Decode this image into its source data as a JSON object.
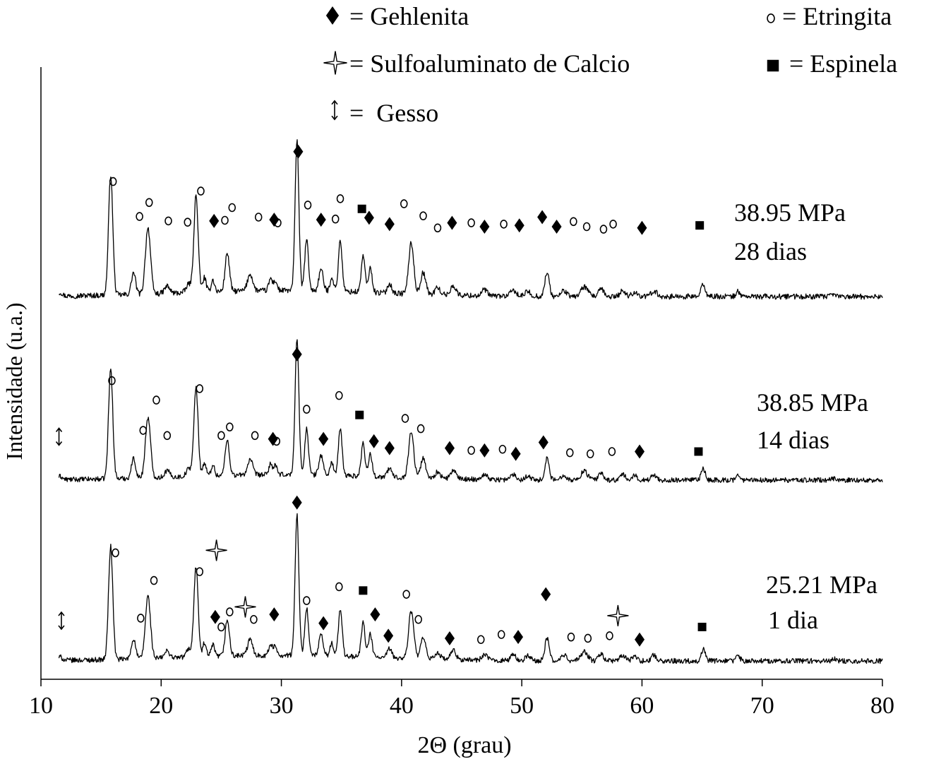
{
  "chart_data": {
    "type": "line",
    "title": "",
    "xlabel": "2Θ (grau)",
    "ylabel": "Intensidade (u.a.)",
    "xlim": [
      10,
      80
    ],
    "xticks": [
      10,
      20,
      30,
      40,
      50,
      60,
      70,
      80
    ],
    "legend": {
      "placement": "top",
      "entries": [
        {
          "symbol": "diamond",
          "label": "= Gehlenita"
        },
        {
          "symbol": "star",
          "label": "= Sulfoaluminato de Calcio"
        },
        {
          "symbol": "updown-arrow",
          "label": "=  Gesso"
        },
        {
          "symbol": "circle",
          "label": "= Etringita"
        },
        {
          "symbol": "square",
          "label": "= Espinela"
        }
      ]
    },
    "peaks": [
      {
        "pos": 11.6,
        "h": 0.03,
        "w": 0.25
      },
      {
        "pos": 15.8,
        "h": 1.0,
        "w": 0.25
      },
      {
        "pos": 17.7,
        "h": 0.18,
        "w": 0.25
      },
      {
        "pos": 18.9,
        "h": 0.55,
        "w": 0.3
      },
      {
        "pos": 20.5,
        "h": 0.06,
        "w": 0.3
      },
      {
        "pos": 22.3,
        "h": 0.07,
        "w": 0.3
      },
      {
        "pos": 22.9,
        "h": 0.8,
        "w": 0.25
      },
      {
        "pos": 23.6,
        "h": 0.12,
        "w": 0.2
      },
      {
        "pos": 24.3,
        "h": 0.1,
        "w": 0.2
      },
      {
        "pos": 25.5,
        "h": 0.32,
        "w": 0.25
      },
      {
        "pos": 27.4,
        "h": 0.14,
        "w": 0.3
      },
      {
        "pos": 29.1,
        "h": 0.1,
        "w": 0.2
      },
      {
        "pos": 29.5,
        "h": 0.08,
        "w": 0.2
      },
      {
        "pos": 31.3,
        "h": 1.25,
        "w": 0.22
      },
      {
        "pos": 32.1,
        "h": 0.42,
        "w": 0.22
      },
      {
        "pos": 33.3,
        "h": 0.18,
        "w": 0.25
      },
      {
        "pos": 34.2,
        "h": 0.12,
        "w": 0.2
      },
      {
        "pos": 34.9,
        "h": 0.42,
        "w": 0.22
      },
      {
        "pos": 36.8,
        "h": 0.3,
        "w": 0.22
      },
      {
        "pos": 37.4,
        "h": 0.2,
        "w": 0.22
      },
      {
        "pos": 39.0,
        "h": 0.08,
        "w": 0.25
      },
      {
        "pos": 40.8,
        "h": 0.42,
        "w": 0.3
      },
      {
        "pos": 41.8,
        "h": 0.18,
        "w": 0.3
      },
      {
        "pos": 43.0,
        "h": 0.06,
        "w": 0.3
      },
      {
        "pos": 44.3,
        "h": 0.08,
        "w": 0.3
      },
      {
        "pos": 46.9,
        "h": 0.05,
        "w": 0.3
      },
      {
        "pos": 49.3,
        "h": 0.05,
        "w": 0.3
      },
      {
        "pos": 50.5,
        "h": 0.04,
        "w": 0.3
      },
      {
        "pos": 52.1,
        "h": 0.2,
        "w": 0.25
      },
      {
        "pos": 53.5,
        "h": 0.05,
        "w": 0.3
      },
      {
        "pos": 55.2,
        "h": 0.08,
        "w": 0.4
      },
      {
        "pos": 56.6,
        "h": 0.06,
        "w": 0.3
      },
      {
        "pos": 58.4,
        "h": 0.05,
        "w": 0.3
      },
      {
        "pos": 59.4,
        "h": 0.04,
        "w": 0.3
      },
      {
        "pos": 61.0,
        "h": 0.05,
        "w": 0.3
      },
      {
        "pos": 65.1,
        "h": 0.1,
        "w": 0.25
      },
      {
        "pos": 68.0,
        "h": 0.04,
        "w": 0.25
      },
      {
        "pos": 76.0,
        "h": 0.015,
        "w": 0.3
      }
    ],
    "series": [
      {
        "name": "28 dias",
        "strength": "38.95 MPa",
        "age": "28 dias",
        "baseline_frac": 0.465,
        "markers": [
          {
            "x": 16.0,
            "y": 0.905,
            "s": "circle"
          },
          {
            "x": 19.0,
            "y": 0.74,
            "s": "circle"
          },
          {
            "x": 18.2,
            "y": 0.63,
            "s": "circle"
          },
          {
            "x": 20.6,
            "y": 0.595,
            "s": "circle"
          },
          {
            "x": 22.2,
            "y": 0.585,
            "s": "circle"
          },
          {
            "x": 23.3,
            "y": 0.83,
            "s": "circle"
          },
          {
            "x": 24.4,
            "y": 0.595,
            "s": "diamond"
          },
          {
            "x": 25.3,
            "y": 0.6,
            "s": "circle"
          },
          {
            "x": 25.9,
            "y": 0.7,
            "s": "circle"
          },
          {
            "x": 28.1,
            "y": 0.625,
            "s": "circle"
          },
          {
            "x": 29.4,
            "y": 0.605,
            "s": "diamond"
          },
          {
            "x": 29.7,
            "y": 0.58,
            "s": "circle"
          },
          {
            "x": 31.4,
            "y": 1.14,
            "s": "diamond"
          },
          {
            "x": 32.2,
            "y": 0.72,
            "s": "circle"
          },
          {
            "x": 33.3,
            "y": 0.605,
            "s": "diamond"
          },
          {
            "x": 34.5,
            "y": 0.61,
            "s": "circle"
          },
          {
            "x": 34.9,
            "y": 0.77,
            "s": "circle"
          },
          {
            "x": 36.7,
            "y": 0.69,
            "s": "square"
          },
          {
            "x": 37.3,
            "y": 0.62,
            "s": "diamond"
          },
          {
            "x": 39.0,
            "y": 0.57,
            "s": "diamond"
          },
          {
            "x": 40.2,
            "y": 0.73,
            "s": "circle"
          },
          {
            "x": 41.8,
            "y": 0.635,
            "s": "circle"
          },
          {
            "x": 43.0,
            "y": 0.54,
            "s": "circle"
          },
          {
            "x": 44.2,
            "y": 0.58,
            "s": "diamond"
          },
          {
            "x": 45.8,
            "y": 0.58,
            "s": "circle"
          },
          {
            "x": 46.9,
            "y": 0.55,
            "s": "diamond"
          },
          {
            "x": 48.5,
            "y": 0.57,
            "s": "circle"
          },
          {
            "x": 49.8,
            "y": 0.56,
            "s": "diamond"
          },
          {
            "x": 51.7,
            "y": 0.625,
            "s": "diamond"
          },
          {
            "x": 52.9,
            "y": 0.55,
            "s": "diamond"
          },
          {
            "x": 54.3,
            "y": 0.59,
            "s": "circle"
          },
          {
            "x": 55.4,
            "y": 0.55,
            "s": "circle"
          },
          {
            "x": 56.8,
            "y": 0.53,
            "s": "circle"
          },
          {
            "x": 57.6,
            "y": 0.57,
            "s": "circle"
          },
          {
            "x": 60.0,
            "y": 0.54,
            "s": "diamond"
          },
          {
            "x": 64.8,
            "y": 0.56,
            "s": "square"
          }
        ]
      },
      {
        "name": "14 dias",
        "strength": "38.85 MPa",
        "age": "14 dias",
        "baseline_frac": 0.47,
        "markers": [
          {
            "x": 11.5,
            "y": 0.38,
            "s": "arrow"
          },
          {
            "x": 15.9,
            "y": 0.87,
            "s": "circle"
          },
          {
            "x": 18.5,
            "y": 0.435,
            "s": "circle"
          },
          {
            "x": 19.6,
            "y": 0.7,
            "s": "circle"
          },
          {
            "x": 20.5,
            "y": 0.39,
            "s": "circle"
          },
          {
            "x": 23.2,
            "y": 0.8,
            "s": "circle"
          },
          {
            "x": 25.0,
            "y": 0.39,
            "s": "circle"
          },
          {
            "x": 25.7,
            "y": 0.465,
            "s": "circle"
          },
          {
            "x": 27.8,
            "y": 0.39,
            "s": "circle"
          },
          {
            "x": 29.3,
            "y": 0.36,
            "s": "diamond"
          },
          {
            "x": 29.6,
            "y": 0.34,
            "s": "circle"
          },
          {
            "x": 31.3,
            "y": 1.1,
            "s": "diamond"
          },
          {
            "x": 32.1,
            "y": 0.62,
            "s": "circle"
          },
          {
            "x": 33.5,
            "y": 0.36,
            "s": "diamond"
          },
          {
            "x": 34.8,
            "y": 0.74,
            "s": "circle"
          },
          {
            "x": 36.5,
            "y": 0.57,
            "s": "square"
          },
          {
            "x": 37.7,
            "y": 0.34,
            "s": "diamond"
          },
          {
            "x": 39.0,
            "y": 0.28,
            "s": "diamond"
          },
          {
            "x": 40.3,
            "y": 0.54,
            "s": "circle"
          },
          {
            "x": 41.6,
            "y": 0.45,
            "s": "circle"
          },
          {
            "x": 44.0,
            "y": 0.28,
            "s": "diamond"
          },
          {
            "x": 45.8,
            "y": 0.26,
            "s": "circle"
          },
          {
            "x": 46.9,
            "y": 0.26,
            "s": "diamond"
          },
          {
            "x": 48.4,
            "y": 0.27,
            "s": "circle"
          },
          {
            "x": 49.5,
            "y": 0.23,
            "s": "diamond"
          },
          {
            "x": 51.8,
            "y": 0.33,
            "s": "diamond"
          },
          {
            "x": 54.0,
            "y": 0.24,
            "s": "circle"
          },
          {
            "x": 55.7,
            "y": 0.23,
            "s": "circle"
          },
          {
            "x": 57.5,
            "y": 0.25,
            "s": "circle"
          },
          {
            "x": 59.8,
            "y": 0.25,
            "s": "diamond"
          },
          {
            "x": 64.7,
            "y": 0.25,
            "s": "square"
          }
        ]
      },
      {
        "name": "1 dia",
        "strength": "25.21 MPa",
        "age": "1 dia",
        "baseline_frac": 0.44,
        "markers": [
          {
            "x": 11.7,
            "y": 0.32,
            "s": "arrow"
          },
          {
            "x": 16.2,
            "y": 0.86,
            "s": "circle"
          },
          {
            "x": 18.3,
            "y": 0.34,
            "s": "circle"
          },
          {
            "x": 19.4,
            "y": 0.64,
            "s": "circle"
          },
          {
            "x": 23.2,
            "y": 0.71,
            "s": "circle"
          },
          {
            "x": 24.6,
            "y": 0.88,
            "s": "star"
          },
          {
            "x": 24.5,
            "y": 0.35,
            "s": "diamond"
          },
          {
            "x": 25.0,
            "y": 0.27,
            "s": "circle"
          },
          {
            "x": 25.7,
            "y": 0.39,
            "s": "circle"
          },
          {
            "x": 27.0,
            "y": 0.43,
            "s": "star"
          },
          {
            "x": 27.7,
            "y": 0.33,
            "s": "circle"
          },
          {
            "x": 29.4,
            "y": 0.37,
            "s": "diamond"
          },
          {
            "x": 31.3,
            "y": 1.26,
            "s": "diamond"
          },
          {
            "x": 32.1,
            "y": 0.48,
            "s": "circle"
          },
          {
            "x": 33.5,
            "y": 0.3,
            "s": "diamond"
          },
          {
            "x": 34.8,
            "y": 0.59,
            "s": "circle"
          },
          {
            "x": 36.8,
            "y": 0.56,
            "s": "square"
          },
          {
            "x": 37.8,
            "y": 0.37,
            "s": "diamond"
          },
          {
            "x": 38.9,
            "y": 0.2,
            "s": "diamond"
          },
          {
            "x": 40.4,
            "y": 0.53,
            "s": "circle"
          },
          {
            "x": 41.4,
            "y": 0.33,
            "s": "circle"
          },
          {
            "x": 44.0,
            "y": 0.18,
            "s": "diamond"
          },
          {
            "x": 46.6,
            "y": 0.17,
            "s": "circle"
          },
          {
            "x": 48.3,
            "y": 0.21,
            "s": "circle"
          },
          {
            "x": 49.7,
            "y": 0.19,
            "s": "diamond"
          },
          {
            "x": 52.0,
            "y": 0.53,
            "s": "diamond"
          },
          {
            "x": 54.1,
            "y": 0.19,
            "s": "circle"
          },
          {
            "x": 55.5,
            "y": 0.18,
            "s": "circle"
          },
          {
            "x": 57.3,
            "y": 0.2,
            "s": "circle"
          },
          {
            "x": 58.0,
            "y": 0.36,
            "s": "star"
          },
          {
            "x": 59.8,
            "y": 0.17,
            "s": "diamond"
          },
          {
            "x": 65.0,
            "y": 0.27,
            "s": "square"
          }
        ]
      }
    ]
  }
}
